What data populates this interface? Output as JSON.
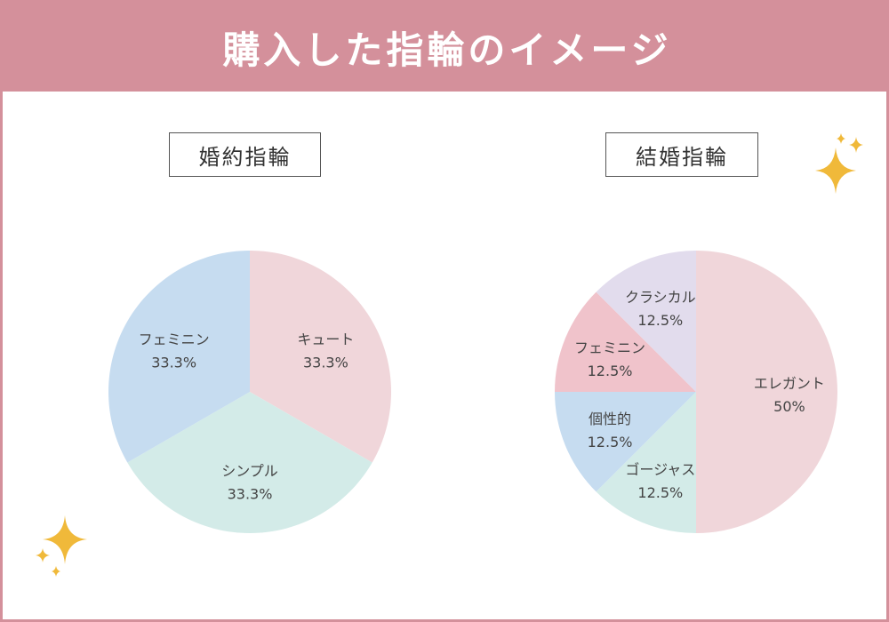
{
  "header": {
    "title": "購入した指輪のイメージ"
  },
  "colors": {
    "header_bg": "#d4909b",
    "sparkle": "#f0b93a"
  },
  "chart_data": [
    {
      "type": "pie",
      "title": "婚約指輪",
      "slices": [
        {
          "label": "キュート",
          "value": 33.3,
          "display": "33.3%",
          "color": "#f0d6da"
        },
        {
          "label": "シンプル",
          "value": 33.3,
          "display": "33.3%",
          "color": "#d3ebe8"
        },
        {
          "label": "フェミニン",
          "value": 33.3,
          "display": "33.3%",
          "color": "#c6dcf0"
        }
      ]
    },
    {
      "type": "pie",
      "title": "結婚指輪",
      "slices": [
        {
          "label": "エレガント",
          "value": 50,
          "display": "50%",
          "color": "#f0d6da"
        },
        {
          "label": "ゴージャス",
          "value": 12.5,
          "display": "12.5%",
          "color": "#d3ebe8"
        },
        {
          "label": "個性的",
          "value": 12.5,
          "display": "12.5%",
          "color": "#c6dcf0"
        },
        {
          "label": "フェミニン",
          "value": 12.5,
          "display": "12.5%",
          "color": "#f0c3cb"
        },
        {
          "label": "クラシカル",
          "value": 12.5,
          "display": "12.5%",
          "color": "#e2dced"
        }
      ]
    }
  ]
}
